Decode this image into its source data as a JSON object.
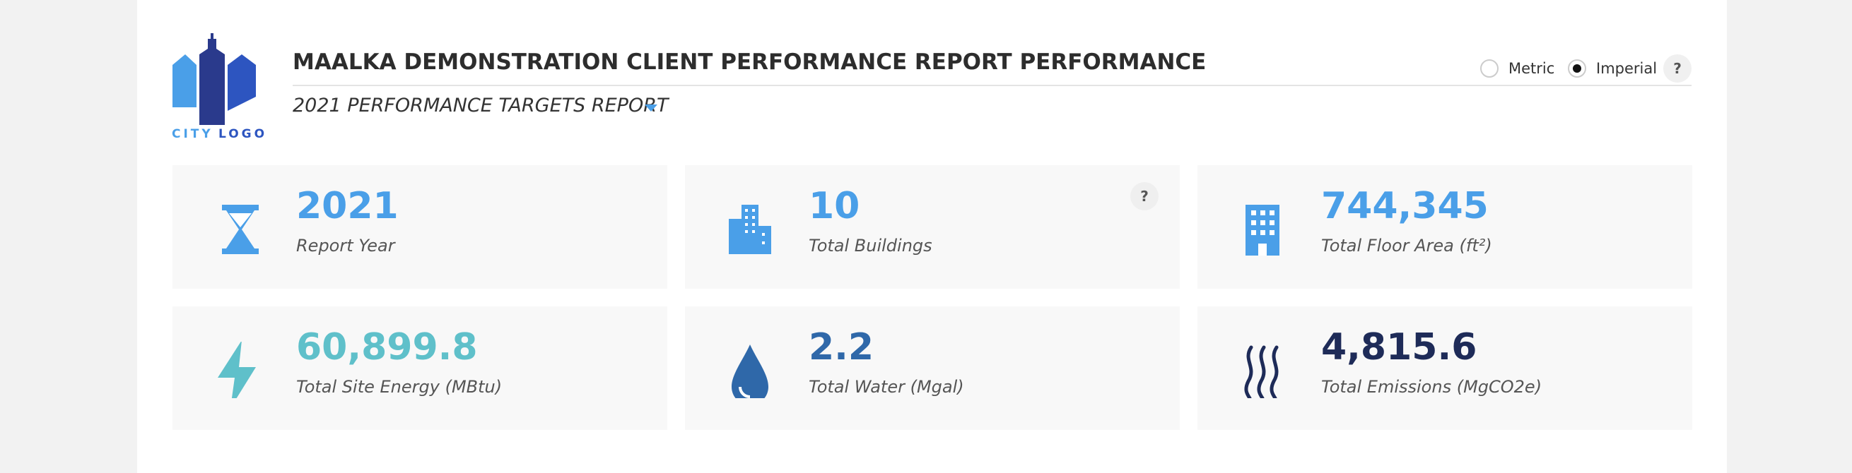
{
  "logo": {
    "word1": "CITY",
    "word2": "LOGO"
  },
  "header": {
    "title": "MAALKA DEMONSTRATION CLIENT PERFORMANCE REPORT PERFORMANCE",
    "subtitle": "2021 PERFORMANCE TARGETS REPORT"
  },
  "units": {
    "options": [
      "Metric",
      "Imperial"
    ],
    "selected": "Imperial",
    "help": "?"
  },
  "cards": [
    {
      "value": "2021",
      "label": "Report Year",
      "color": "#4a9fe8"
    },
    {
      "value": "10",
      "label": "Total Buildings",
      "color": "#4a9fe8",
      "help": "?"
    },
    {
      "value": "744,345",
      "label": "Total Floor Area (ft²)",
      "color": "#4a9fe8"
    },
    {
      "value": "60,899.8",
      "label": "Total Site Energy (MBtu)",
      "color": "#5fc0ca"
    },
    {
      "value": "2.2",
      "label": "Total Water (Mgal)",
      "color": "#2f68a9"
    },
    {
      "value": "4,815.6",
      "label": "Total Emissions (MgCO2e)",
      "color": "#1e2b58"
    }
  ]
}
